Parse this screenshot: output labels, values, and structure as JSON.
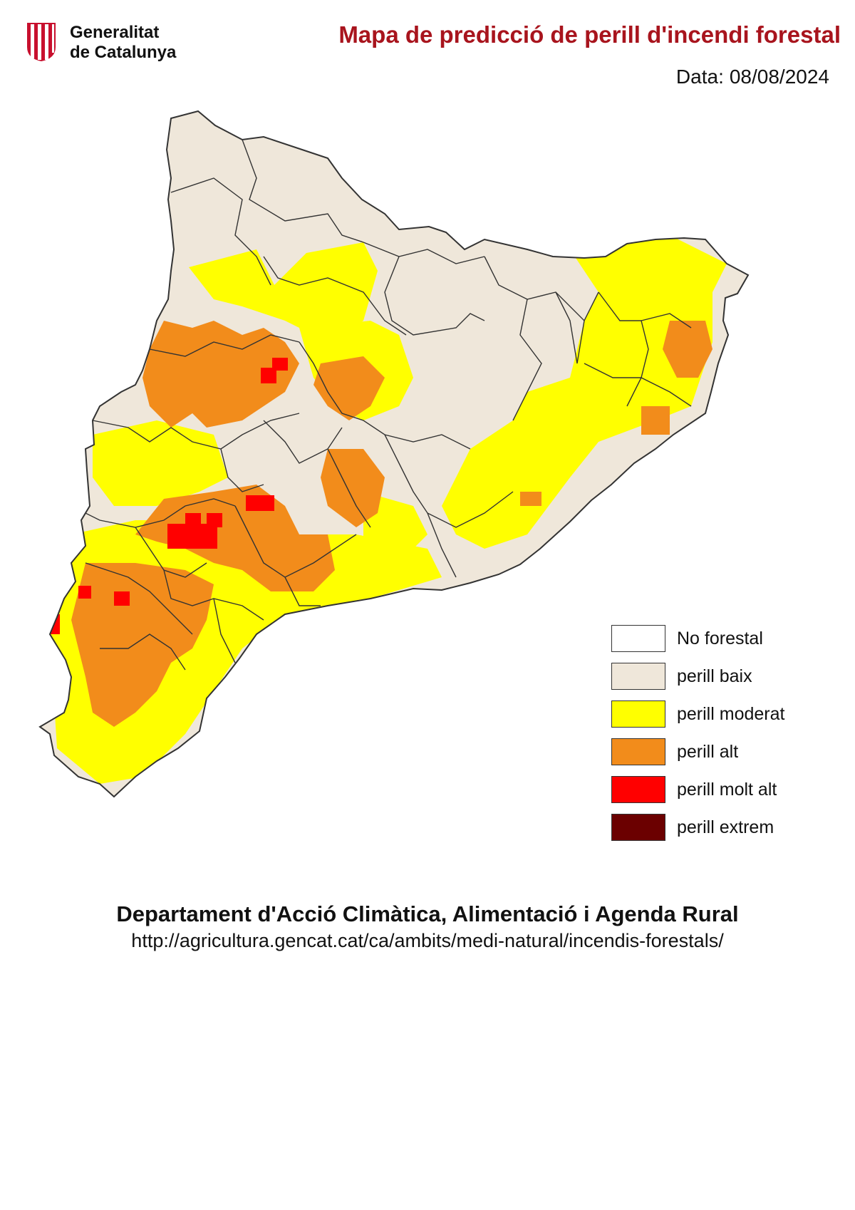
{
  "header": {
    "logo_line1": "Generalitat",
    "logo_line2": "de Catalunya",
    "title": "Mapa de predicció de perill d'incendi forestal",
    "date_prefix": "Data:",
    "date": "08/08/2024"
  },
  "colors": {
    "title": "#a8141d",
    "logo_red": "#c8102e",
    "no_forestal": "#ffffff",
    "perill_baix": "#efe7da",
    "perill_moderat": "#ffff00",
    "perill_alt": "#f28c1b",
    "perill_molt_alt": "#ff0000",
    "perill_extrem": "#6b0000",
    "boundary": "#333333"
  },
  "legend": [
    {
      "key": "no_forestal",
      "label": "No forestal"
    },
    {
      "key": "perill_baix",
      "label": "perill baix"
    },
    {
      "key": "perill_moderat",
      "label": "perill moderat"
    },
    {
      "key": "perill_alt",
      "label": "perill alt"
    },
    {
      "key": "perill_molt_alt",
      "label": "perill molt alt"
    },
    {
      "key": "perill_extrem",
      "label": "perill extrem"
    }
  ],
  "footer": {
    "department": "Departament d'Acció Climàtica, Alimentació i Agenda Rural",
    "url": "http://agricultura.gencat.cat/ca/ambits/medi-natural/incendis-forestals/"
  }
}
